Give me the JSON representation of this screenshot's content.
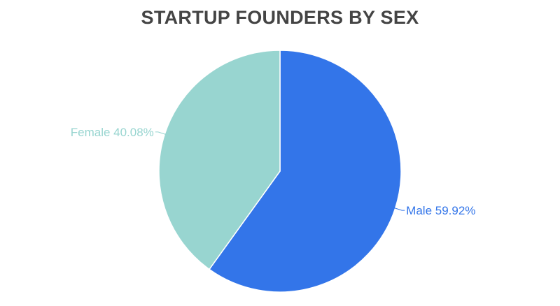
{
  "chart_data": {
    "type": "pie",
    "title": "STARTUP FOUNDERS BY SEX",
    "slices": [
      {
        "label": "Male",
        "value": 59.92,
        "display": "Male 59.92%",
        "color": "#3375E9"
      },
      {
        "label": "Female",
        "value": 40.08,
        "display": "Female 40.08%",
        "color": "#98D5D0"
      }
    ],
    "start_angle": "12 o'clock",
    "direction": "clockwise",
    "legend": "none (inline labels)"
  }
}
